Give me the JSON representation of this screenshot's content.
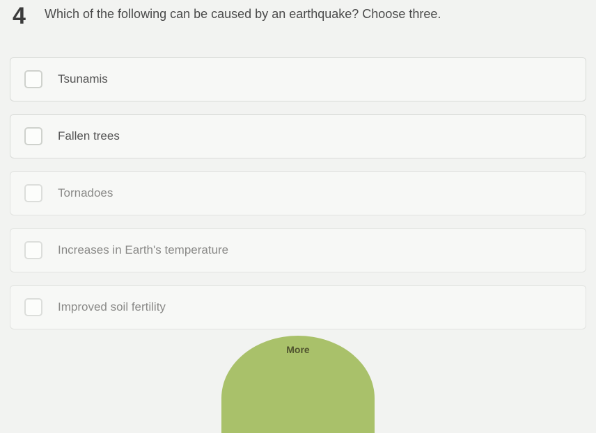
{
  "question": {
    "number": "4",
    "text": "Which of the following can be caused by an earthquake? Choose three."
  },
  "options": [
    {
      "label": "Tsunamis",
      "checked": false,
      "faded": false
    },
    {
      "label": "Fallen trees",
      "checked": false,
      "faded": false
    },
    {
      "label": "Tornadoes",
      "checked": false,
      "faded": true
    },
    {
      "label": "Increases in Earth's temperature",
      "checked": false,
      "faded": true
    },
    {
      "label": "Improved soil fertility",
      "checked": false,
      "faded": true
    }
  ],
  "more_button": {
    "label": "More"
  },
  "colors": {
    "page_bg": "#f2f3f1",
    "option_bg": "#f7f8f6",
    "option_border": "#d9dbd8",
    "checkbox_border": "#cfd2cd",
    "text_primary": "#4a4a4a",
    "text_faded": "#8a8a88",
    "more_bg": "#a9c16a",
    "more_text": "#50532f"
  }
}
